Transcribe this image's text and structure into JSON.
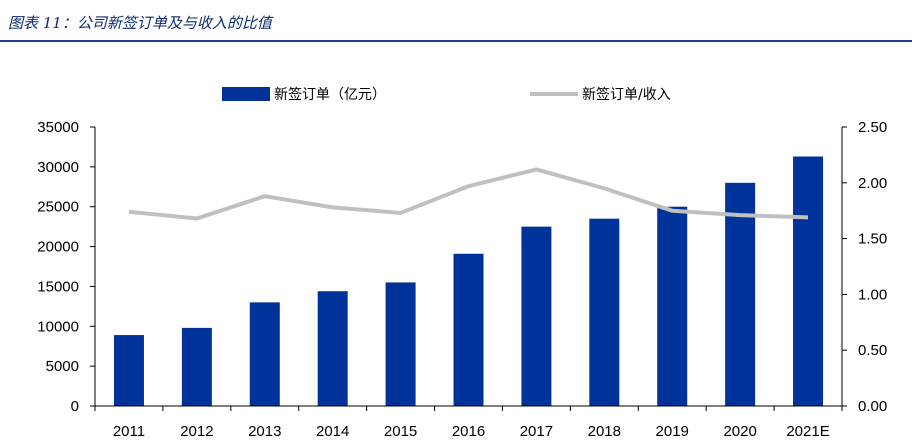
{
  "header": {
    "title": "图表 11：公司新签订单及与收入的比值"
  },
  "chart_data": {
    "type": "bar",
    "categories": [
      "2011",
      "2012",
      "2013",
      "2014",
      "2015",
      "2016",
      "2017",
      "2018",
      "2019",
      "2020",
      "2021E"
    ],
    "series": [
      {
        "name": "新签订单（亿元）",
        "type": "bar",
        "axis": "left",
        "color": "#003399",
        "values": [
          8900,
          9800,
          13000,
          14400,
          15500,
          19100,
          22500,
          23500,
          25000,
          28000,
          31300
        ]
      },
      {
        "name": "新签订单/收入",
        "type": "line",
        "axis": "right",
        "color": "#c0c0c0",
        "values": [
          1.74,
          1.68,
          1.88,
          1.78,
          1.73,
          1.97,
          2.12,
          1.95,
          1.75,
          1.71,
          1.69
        ]
      }
    ],
    "y_left": {
      "min": 0,
      "max": 35000,
      "ticks": [
        "0",
        "5000",
        "10000",
        "15000",
        "20000",
        "25000",
        "30000",
        "35000"
      ]
    },
    "y_right": {
      "min": 0,
      "max": 2.5,
      "ticks": [
        "0.00",
        "0.50",
        "1.00",
        "1.50",
        "2.00",
        "2.50"
      ]
    },
    "legend_position": "top",
    "grid": false
  }
}
